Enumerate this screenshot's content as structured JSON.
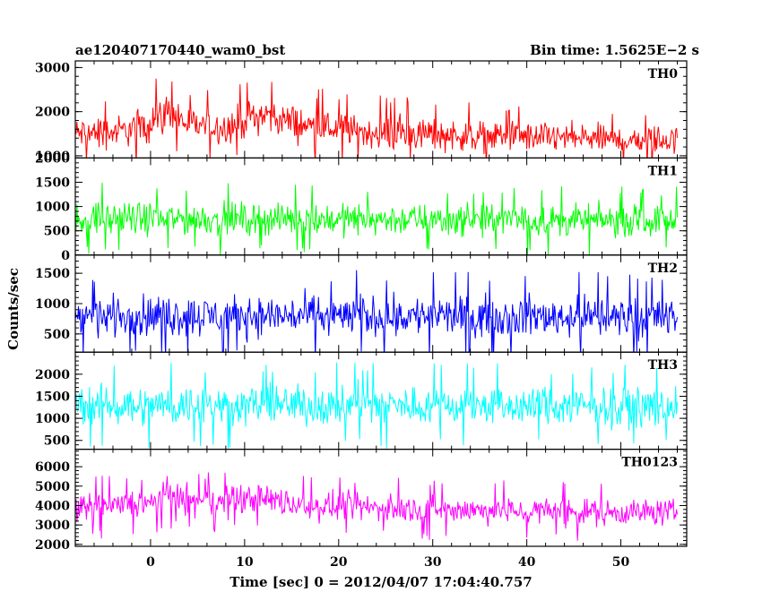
{
  "chart_data": {
    "type": "line",
    "title_left": "ae120407170440_wam0_bst",
    "title_right": "Bin time: 1.5625E−2 s",
    "xlabel": "Time [sec] 0 = 2012/04/07 17:04:40.757",
    "ylabel": "Counts/sec",
    "xlim": [
      -8,
      57
    ],
    "x_ticks": [
      0,
      10,
      20,
      30,
      40,
      50
    ],
    "x_tick_labels": [
      "0",
      "10",
      "20",
      "30",
      "40",
      "50"
    ],
    "x_data_range": [
      -8,
      56
    ],
    "bin_time": 0.015625,
    "panels": [
      {
        "label": "TH0",
        "color": "#ff0000",
        "ylim": [
          950,
          3150
        ],
        "y_ticks": [
          1000,
          2000,
          3000
        ],
        "y_tick_labels": [
          "1000",
          "2000",
          "3000"
        ],
        "profile": [
          {
            "x": -8,
            "mean": 1500,
            "spread": 450
          },
          {
            "x": -3,
            "mean": 1550,
            "spread": 480
          },
          {
            "x": 0,
            "mean": 1750,
            "spread": 520
          },
          {
            "x": 2,
            "mean": 2000,
            "spread": 560
          },
          {
            "x": 4,
            "mean": 1700,
            "spread": 500
          },
          {
            "x": 8,
            "mean": 1650,
            "spread": 480
          },
          {
            "x": 12,
            "mean": 1950,
            "spread": 540
          },
          {
            "x": 16,
            "mean": 1700,
            "spread": 500
          },
          {
            "x": 22,
            "mean": 1550,
            "spread": 470
          },
          {
            "x": 28,
            "mean": 1500,
            "spread": 460
          },
          {
            "x": 35,
            "mean": 1450,
            "spread": 440
          },
          {
            "x": 45,
            "mean": 1400,
            "spread": 420
          },
          {
            "x": 56,
            "mean": 1350,
            "spread": 410
          }
        ]
      },
      {
        "label": "TH1",
        "color": "#00ff00",
        "ylim": [
          0,
          2000
        ],
        "y_ticks": [
          0,
          500,
          1000,
          1500,
          2000
        ],
        "y_tick_labels": [
          "0",
          "500",
          "1000",
          "1500",
          "2000"
        ],
        "profile": [
          {
            "x": -8,
            "mean": 750,
            "spread": 420
          },
          {
            "x": 20,
            "mean": 740,
            "spread": 410
          },
          {
            "x": 56,
            "mean": 700,
            "spread": 400
          }
        ]
      },
      {
        "label": "TH2",
        "color": "#0000ff",
        "ylim": [
          200,
          1800
        ],
        "y_ticks": [
          500,
          1000,
          1500
        ],
        "y_tick_labels": [
          "500",
          "1000",
          "1500"
        ],
        "profile": [
          {
            "x": -8,
            "mean": 800,
            "spread": 420
          },
          {
            "x": 20,
            "mean": 800,
            "spread": 420
          },
          {
            "x": 56,
            "mean": 780,
            "spread": 410
          }
        ]
      },
      {
        "label": "TH3",
        "color": "#00ffff",
        "ylim": [
          300,
          2500
        ],
        "y_ticks": [
          500,
          1000,
          1500,
          2000
        ],
        "y_tick_labels": [
          "500",
          "1000",
          "1500",
          "2000"
        ],
        "profile": [
          {
            "x": -8,
            "mean": 1300,
            "spread": 560
          },
          {
            "x": 20,
            "mean": 1300,
            "spread": 560
          },
          {
            "x": 56,
            "mean": 1260,
            "spread": 540
          }
        ]
      },
      {
        "label": "TH0123",
        "color": "#ff00ff",
        "ylim": [
          1900,
          6900
        ],
        "y_ticks": [
          2000,
          3000,
          4000,
          5000,
          6000
        ],
        "y_tick_labels": [
          "2000",
          "3000",
          "4000",
          "5000",
          "6000"
        ],
        "profile": [
          {
            "x": -8,
            "mean": 3800,
            "spread": 900
          },
          {
            "x": 0,
            "mean": 4100,
            "spread": 950
          },
          {
            "x": 2,
            "mean": 4600,
            "spread": 1000
          },
          {
            "x": 5,
            "mean": 4100,
            "spread": 950
          },
          {
            "x": 12,
            "mean": 4400,
            "spread": 980
          },
          {
            "x": 16,
            "mean": 4000,
            "spread": 930
          },
          {
            "x": 30,
            "mean": 3800,
            "spread": 880
          },
          {
            "x": 45,
            "mean": 3700,
            "spread": 860
          },
          {
            "x": 56,
            "mean": 3650,
            "spread": 850
          }
        ]
      }
    ]
  }
}
